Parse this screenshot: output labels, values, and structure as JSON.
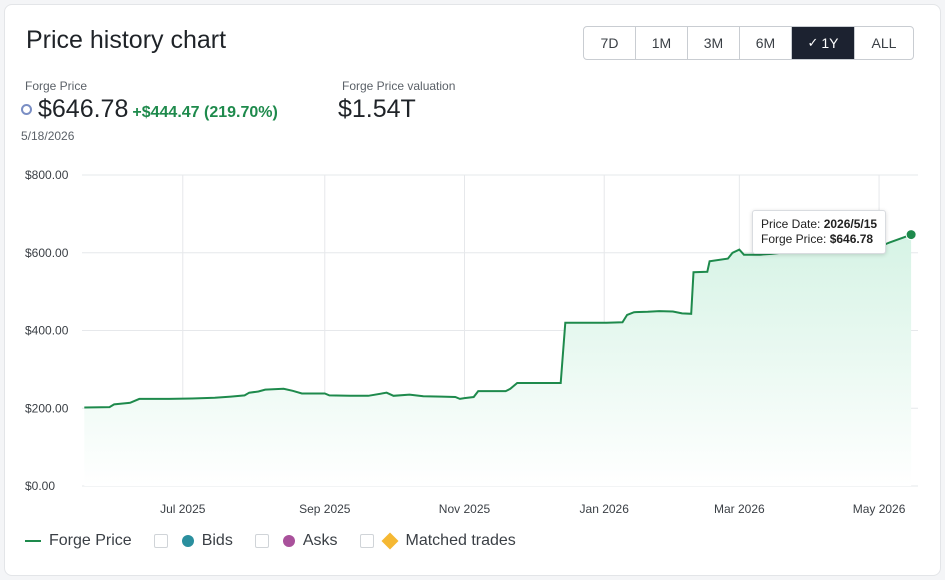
{
  "header": {
    "title": "Price history chart",
    "ranges": [
      "7D",
      "1M",
      "3M",
      "6M",
      "1Y",
      "ALL"
    ],
    "active_range": "1Y"
  },
  "stats": {
    "price_label": "Forge Price",
    "price": "$646.78",
    "change": "+$444.47 (219.70%)",
    "valuation_label": "Forge Price valuation",
    "valuation": "$1.54T",
    "date": "5/18/2026"
  },
  "tooltip": {
    "date_label": "Price Date:",
    "date_value": "2026/5/15",
    "price_label": "Forge Price:",
    "price_value": "$646.78"
  },
  "legend": {
    "forge_price": "Forge Price",
    "bids": "Bids",
    "asks": "Asks",
    "matched": "Matched trades"
  },
  "colors": {
    "line": "#1e8a4c",
    "area": "#e7f7ef",
    "bids": "#2a8f9e",
    "asks": "#a9519b",
    "matched": "#f5b833"
  },
  "chart_data": {
    "type": "area",
    "title": "Price history chart",
    "series": [
      {
        "name": "Forge Price",
        "points": [
          [
            "2025-05-19",
            202
          ],
          [
            "2025-05-30",
            203
          ],
          [
            "2025-06-01",
            210
          ],
          [
            "2025-06-08",
            214
          ],
          [
            "2025-06-12",
            224
          ],
          [
            "2025-06-25",
            224
          ],
          [
            "2025-07-05",
            225
          ],
          [
            "2025-07-15",
            227
          ],
          [
            "2025-07-22",
            230
          ],
          [
            "2025-07-28",
            233
          ],
          [
            "2025-07-30",
            240
          ],
          [
            "2025-08-03",
            243
          ],
          [
            "2025-08-06",
            248
          ],
          [
            "2025-08-14",
            250
          ],
          [
            "2025-08-18",
            245
          ],
          [
            "2025-08-22",
            238
          ],
          [
            "2025-09-01",
            238
          ],
          [
            "2025-09-03",
            233
          ],
          [
            "2025-09-12",
            232
          ],
          [
            "2025-09-20",
            232
          ],
          [
            "2025-09-28",
            240
          ],
          [
            "2025-10-01",
            232
          ],
          [
            "2025-10-08",
            235
          ],
          [
            "2025-10-14",
            231
          ],
          [
            "2025-10-22",
            230
          ],
          [
            "2025-10-28",
            229
          ],
          [
            "2025-10-30",
            224
          ],
          [
            "2025-11-01",
            226
          ],
          [
            "2025-11-05",
            229
          ],
          [
            "2025-11-07",
            244
          ],
          [
            "2025-11-19",
            244
          ],
          [
            "2025-11-21",
            250
          ],
          [
            "2025-11-24",
            265
          ],
          [
            "2025-12-01",
            265
          ],
          [
            "2025-12-13",
            265
          ],
          [
            "2025-12-15",
            420
          ],
          [
            "2025-12-20",
            420
          ],
          [
            "2026-01-02",
            420
          ],
          [
            "2026-01-09",
            421
          ],
          [
            "2026-01-11",
            440
          ],
          [
            "2026-01-14",
            447
          ],
          [
            "2026-01-20",
            448
          ],
          [
            "2026-01-25",
            450
          ],
          [
            "2026-01-31",
            449
          ],
          [
            "2026-02-04",
            444
          ],
          [
            "2026-02-08",
            443
          ],
          [
            "2026-02-09",
            550
          ],
          [
            "2026-02-15",
            551
          ],
          [
            "2026-02-16",
            578
          ],
          [
            "2026-02-24",
            585
          ],
          [
            "2026-02-26",
            600
          ],
          [
            "2026-03-01",
            608
          ],
          [
            "2026-03-03",
            595
          ],
          [
            "2026-03-10",
            595
          ],
          [
            "2026-03-15",
            597
          ],
          [
            "2026-03-25",
            604
          ],
          [
            "2026-04-01",
            604
          ],
          [
            "2026-04-10",
            604
          ],
          [
            "2026-04-18",
            606
          ],
          [
            "2026-04-28",
            607
          ],
          [
            "2026-05-05",
            625
          ],
          [
            "2026-05-12",
            640
          ],
          [
            "2026-05-15",
            646.78
          ]
        ]
      }
    ],
    "xlabel": "",
    "ylabel": "",
    "x_ticks": [
      "Jul 2025",
      "Sep 2025",
      "Nov 2025",
      "Jan 2026",
      "Mar 2026",
      "May 2026"
    ],
    "x_tick_dates": [
      "2025-07-01",
      "2025-09-01",
      "2025-11-01",
      "2026-01-01",
      "2026-03-01",
      "2026-05-01"
    ],
    "y_ticks": [
      "$0.00",
      "$200.00",
      "$400.00",
      "$600.00",
      "$800.00"
    ],
    "y_tick_values": [
      0,
      200,
      400,
      600,
      800
    ],
    "xlim": [
      "2025-05-18",
      "2026-05-18"
    ],
    "ylim": [
      0,
      800
    ],
    "grid": true,
    "legend": "bottom-left"
  }
}
